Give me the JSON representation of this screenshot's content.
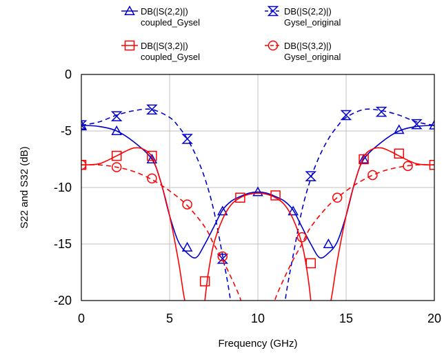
{
  "chart_data": {
    "type": "line",
    "title": "",
    "xlabel": "Frequency (GHz)",
    "ylabel": "S22 and S32 (dB)",
    "xlim": [
      0,
      20
    ],
    "ylim": [
      -20,
      0
    ],
    "xticks": [
      0,
      5,
      10,
      15,
      20
    ],
    "yticks": [
      0,
      -5,
      -10,
      -15,
      -20
    ],
    "grid": true,
    "legend_placement": "top",
    "series": [
      {
        "name_line1": "DB(|S(2,2)|)",
        "name_line2": "coupled_Gysel",
        "color": "#0000cc",
        "dash": "solid",
        "marker": "triangle-up",
        "x": [
          0,
          1,
          2,
          3,
          4,
          4.5,
          5,
          5.5,
          6,
          6.5,
          7,
          7.5,
          8,
          8.5,
          9,
          9.5,
          10,
          10.5,
          11,
          11.5,
          12,
          12.5,
          13,
          13.5,
          14,
          14.5,
          15,
          15.5,
          16,
          17,
          18,
          19,
          20
        ],
        "y": [
          -4.5,
          -4.6,
          -5.0,
          -6.0,
          -7.5,
          -9.5,
          -12.5,
          -14.8,
          -15.8,
          -16.2,
          -15.0,
          -13.5,
          -12.0,
          -11.2,
          -10.8,
          -10.5,
          -10.4,
          -10.5,
          -10.8,
          -11.2,
          -12.0,
          -13.5,
          -15.0,
          -16.2,
          -15.8,
          -14.8,
          -12.5,
          -9.5,
          -7.5,
          -6.0,
          -5.0,
          -4.6,
          -4.5
        ],
        "marker_x": [
          0,
          2,
          4,
          6,
          8,
          10,
          12,
          14,
          16,
          18,
          20
        ],
        "marker_y": [
          -4.5,
          -5.0,
          -7.5,
          -15.3,
          -12.1,
          -10.4,
          -12.1,
          -15.0,
          -7.5,
          -4.9,
          -4.5
        ]
      },
      {
        "name_line1": "DB(|S(2,2)|)",
        "name_line2": "Gysel_original",
        "color": "#0000cc",
        "dash": "dashed",
        "marker": "hourglass",
        "x": [
          0,
          1,
          2,
          3,
          4,
          5,
          5.5,
          6,
          6.5,
          7,
          7.5,
          8,
          8.3,
          8.5,
          8.7,
          11.3,
          11.5,
          11.7,
          12,
          12.5,
          13,
          13.5,
          14,
          14.5,
          15,
          16,
          17,
          18,
          19,
          20
        ],
        "y": [
          -4.5,
          -4.2,
          -3.6,
          -3.2,
          -3.1,
          -3.8,
          -4.6,
          -5.7,
          -7.2,
          -9.2,
          -12.0,
          -16.0,
          -18.5,
          -20.5,
          -22.5,
          -22.5,
          -20.5,
          -18.5,
          -16.0,
          -12.0,
          -9.2,
          -7.2,
          -5.7,
          -4.6,
          -3.8,
          -3.1,
          -3.2,
          -3.6,
          -4.2,
          -4.5
        ],
        "marker_x": [
          0,
          2,
          4,
          6,
          8,
          13,
          15,
          17,
          19
        ],
        "marker_y": [
          -4.5,
          -3.7,
          -3.1,
          -5.7,
          -16.3,
          -9.0,
          -3.6,
          -3.3,
          -4.4
        ]
      },
      {
        "name_line1": "DB(|S(3,2)|)",
        "name_line2": "coupled_Gysel",
        "color": "#ff0000",
        "dash": "solid",
        "marker": "square",
        "x": [
          0,
          1,
          2,
          2.5,
          3,
          3.5,
          4,
          4.5,
          5,
          5.5,
          5.8,
          6,
          6.1,
          6.9,
          7,
          7.2,
          7.5,
          8,
          8.5,
          9,
          9.5,
          10,
          10.5,
          11,
          11.5,
          12,
          12.5,
          12.8,
          13,
          13.1,
          13.9,
          14,
          14.2,
          14.5,
          15,
          15.5,
          16,
          16.5,
          17,
          17.5,
          18,
          19,
          20
        ],
        "y": [
          -8.0,
          -7.9,
          -7.2,
          -6.8,
          -6.5,
          -6.6,
          -7.3,
          -9.5,
          -12.5,
          -16.5,
          -19.5,
          -21.0,
          -22.0,
          -22.0,
          -20.0,
          -17.5,
          -15.0,
          -12.8,
          -11.5,
          -10.9,
          -10.6,
          -10.5,
          -10.6,
          -10.9,
          -11.5,
          -12.8,
          -15.0,
          -17.5,
          -20.0,
          -22.0,
          -22.0,
          -21.0,
          -19.5,
          -16.5,
          -12.5,
          -9.5,
          -7.3,
          -6.6,
          -6.5,
          -6.8,
          -7.2,
          -7.9,
          -8.0
        ],
        "marker_x": [
          0,
          2,
          4,
          7,
          9,
          11,
          13,
          16,
          18,
          20
        ],
        "marker_y": [
          -8.0,
          -7.2,
          -7.2,
          -18.3,
          -10.9,
          -10.7,
          -16.7,
          -7.5,
          -7.0,
          -8.0
        ]
      },
      {
        "name_line1": "DB(|S(3,2)|)",
        "name_line2": "Gysel_original",
        "color": "#ff0000",
        "dash": "dashed",
        "marker": "circle",
        "x": [
          0,
          1,
          2,
          3,
          4,
          5,
          6,
          7,
          7.5,
          8,
          8.5,
          9,
          9.2,
          10.8,
          11,
          11.5,
          12,
          12.5,
          13,
          14,
          15,
          16,
          17,
          18,
          19,
          20
        ],
        "y": [
          -8.0,
          -8.0,
          -8.2,
          -8.6,
          -9.3,
          -10.3,
          -11.6,
          -13.5,
          -15.0,
          -16.4,
          -18.0,
          -19.8,
          -21.0,
          -21.0,
          -19.8,
          -18.0,
          -16.4,
          -15.0,
          -13.5,
          -11.6,
          -10.3,
          -9.3,
          -8.6,
          -8.2,
          -8.0,
          -8.0
        ],
        "marker_x": [
          0,
          2,
          4,
          6,
          8,
          12.5,
          14.5,
          16.5,
          18.5
        ],
        "marker_y": [
          -8.0,
          -8.2,
          -9.2,
          -11.5,
          -16.1,
          -14.4,
          -10.9,
          -8.9,
          -8.1
        ]
      }
    ]
  }
}
